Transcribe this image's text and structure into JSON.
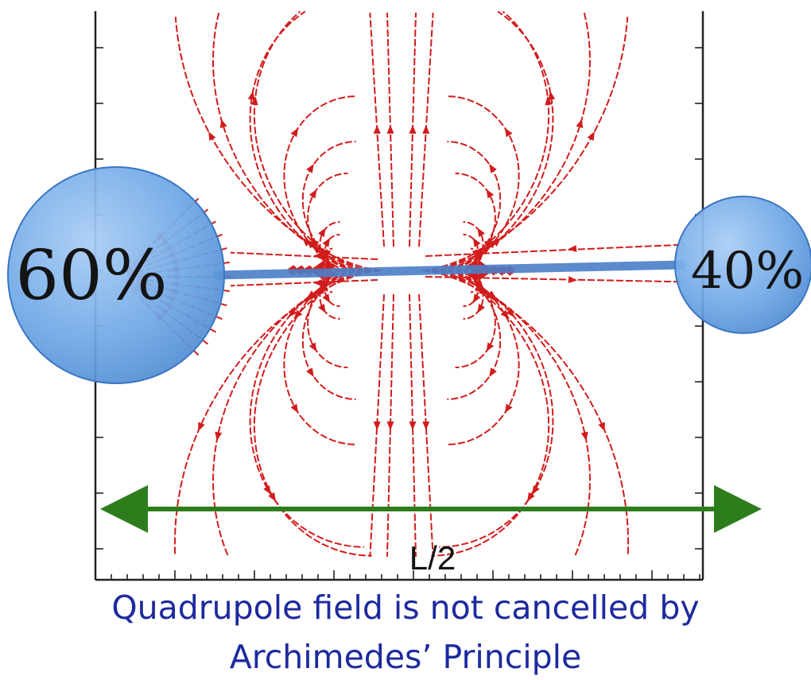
{
  "diagram": {
    "large_mass_label": "60%",
    "small_mass_label": "40%",
    "length_label": "L/2",
    "caption_line_1": "Quadrupole field is not cancelled by",
    "caption_line_2": "Archimedes’ Principle"
  },
  "colors": {
    "field_lines": "#d21c1c",
    "mass_fill": "#6fa8e6",
    "mass_edge": "#3a75c2",
    "rod": "#4a7fc8",
    "length_arrow": "#2e7d1d",
    "caption": "#1d2a9e",
    "frame": "#222222"
  },
  "icons": {
    "length_arrow": "double-headed-arrow-icon"
  }
}
